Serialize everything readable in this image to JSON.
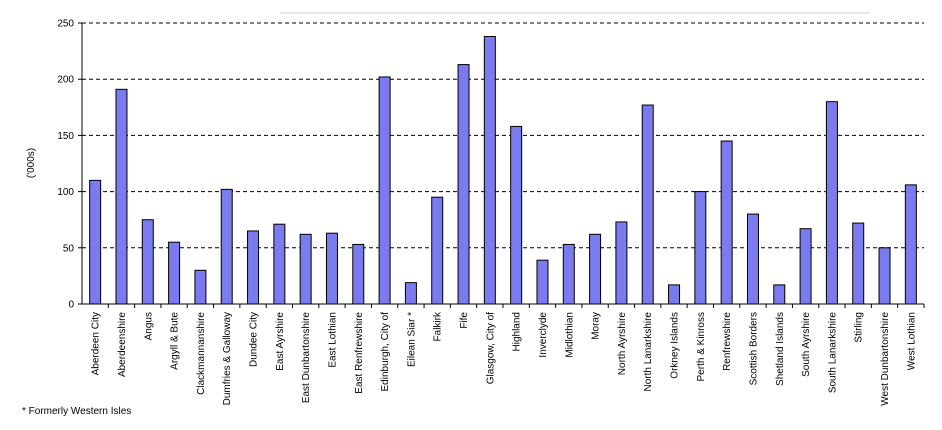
{
  "chart_data": {
    "type": "bar",
    "title": "",
    "xlabel": "",
    "ylabel": "('000s)",
    "ylim": [
      0,
      250
    ],
    "yticks": [
      0,
      50,
      100,
      150,
      200,
      250
    ],
    "grid": true,
    "colors": {
      "bar_fill": "#7b7bf0",
      "bar_stroke": "#000000",
      "grid": "#000000"
    },
    "categories": [
      "Aberdeen City",
      "Aberdeenshire",
      "Angus",
      "Argyll & Bute",
      "Clackmannanshire",
      "Dumfries & Galloway",
      "Dundee City",
      "East Ayrshire",
      "East Dunbartonshire",
      "East Lothian",
      "East Renfrewshire",
      "Edinburgh, City of",
      "Eilean Siar *",
      "Falkirk",
      "Fife",
      "Glasgow, City of",
      "Highland",
      "Inverclyde",
      "Midlothian",
      "Moray",
      "North Ayrshire",
      "North Lanarkshire",
      "Orkney Islands",
      "Perth & Kinross",
      "Renfrewshire",
      "Scottish Borders",
      "Shetland Islands",
      "South Ayrshire",
      "South Lanarkshire",
      "Stirling",
      "West Dunbartonshire",
      "West Lothian"
    ],
    "values": [
      110,
      191,
      75,
      55,
      30,
      102,
      65,
      71,
      62,
      63,
      53,
      202,
      19,
      95,
      213,
      238,
      158,
      39,
      53,
      62,
      73,
      177,
      17,
      100,
      145,
      80,
      17,
      67,
      180,
      72,
      50,
      106
    ]
  },
  "footnote": "* Formerly Western Isles"
}
